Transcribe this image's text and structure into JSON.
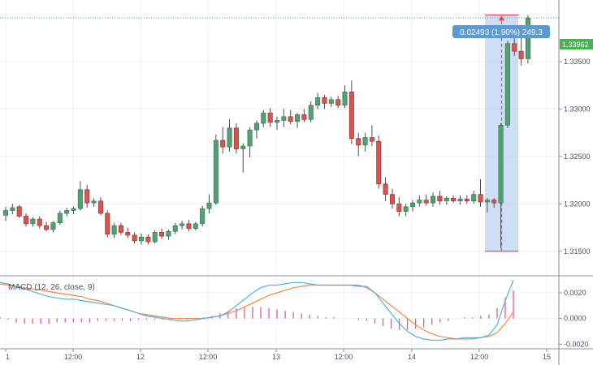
{
  "chart_data": [
    {
      "type": "candlestick",
      "x_ticks": [
        "1",
        "12:00",
        "12",
        "12:00",
        "13",
        "12:00",
        "14",
        "12:00",
        "15"
      ],
      "y_ticks": [
        "1.31500",
        "1.32000",
        "1.32500",
        "1.33000",
        "1.33500"
      ],
      "ylim": [
        1.3125,
        1.3415
      ],
      "grid": true,
      "current_price": "1.33962",
      "measure_label": "0.02493 (1.90%) 249.3",
      "measure_range": [
        1.315,
        1.33993
      ],
      "candles": [
        [
          1.3188,
          1.3197,
          1.3182,
          1.3193
        ],
        [
          1.3193,
          1.32,
          1.3189,
          1.3196
        ],
        [
          1.3197,
          1.3199,
          1.3185,
          1.3187
        ],
        [
          1.3187,
          1.319,
          1.3176,
          1.3179
        ],
        [
          1.3179,
          1.3186,
          1.3176,
          1.3184
        ],
        [
          1.3184,
          1.3187,
          1.3174,
          1.3177
        ],
        [
          1.3177,
          1.3181,
          1.3171,
          1.3173
        ],
        [
          1.3173,
          1.3182,
          1.317,
          1.318
        ],
        [
          1.318,
          1.3193,
          1.3178,
          1.319
        ],
        [
          1.319,
          1.3196,
          1.3187,
          1.3193
        ],
        [
          1.3193,
          1.3197,
          1.3189,
          1.3195
        ],
        [
          1.3195,
          1.3224,
          1.3193,
          1.3215
        ],
        [
          1.3215,
          1.322,
          1.3196,
          1.3201
        ],
        [
          1.3201,
          1.3206,
          1.3197,
          1.3203
        ],
        [
          1.3203,
          1.3207,
          1.3188,
          1.319
        ],
        [
          1.319,
          1.3193,
          1.3165,
          1.3168
        ],
        [
          1.3168,
          1.318,
          1.3164,
          1.3177
        ],
        [
          1.3177,
          1.318,
          1.3167,
          1.317
        ],
        [
          1.317,
          1.3175,
          1.3164,
          1.3167
        ],
        [
          1.3167,
          1.317,
          1.3158,
          1.3161
        ],
        [
          1.3161,
          1.3169,
          1.3157,
          1.3165
        ],
        [
          1.3165,
          1.3168,
          1.3157,
          1.316
        ],
        [
          1.316,
          1.3172,
          1.3158,
          1.317
        ],
        [
          1.317,
          1.3174,
          1.3163,
          1.3166
        ],
        [
          1.3166,
          1.3173,
          1.3162,
          1.3171
        ],
        [
          1.3171,
          1.318,
          1.3168,
          1.3177
        ],
        [
          1.3177,
          1.3182,
          1.3173,
          1.3179
        ],
        [
          1.3179,
          1.3183,
          1.3171,
          1.3174
        ],
        [
          1.3174,
          1.3181,
          1.3172,
          1.3179
        ],
        [
          1.3179,
          1.3198,
          1.3176,
          1.3195
        ],
        [
          1.3195,
          1.321,
          1.319,
          1.3201
        ],
        [
          1.3201,
          1.3273,
          1.3199,
          1.3267
        ],
        [
          1.3267,
          1.3281,
          1.3253,
          1.326
        ],
        [
          1.326,
          1.3289,
          1.3255,
          1.328
        ],
        [
          1.328,
          1.3285,
          1.3253,
          1.3258
        ],
        [
          1.3258,
          1.3264,
          1.3233,
          1.3261
        ],
        [
          1.3261,
          1.3281,
          1.3249,
          1.3278
        ],
        [
          1.3278,
          1.3288,
          1.3269,
          1.3285
        ],
        [
          1.3285,
          1.3299,
          1.3281,
          1.3296
        ],
        [
          1.3296,
          1.3301,
          1.3281,
          1.3286
        ],
        [
          1.3286,
          1.3292,
          1.3278,
          1.3288
        ],
        [
          1.3288,
          1.33,
          1.3281,
          1.3292
        ],
        [
          1.3292,
          1.3299,
          1.3284,
          1.3287
        ],
        [
          1.3287,
          1.3296,
          1.328,
          1.3294
        ],
        [
          1.3294,
          1.33,
          1.3286,
          1.3289
        ],
        [
          1.3289,
          1.3308,
          1.3286,
          1.3304
        ],
        [
          1.3304,
          1.3317,
          1.33,
          1.3312
        ],
        [
          1.3312,
          1.3315,
          1.33,
          1.3306
        ],
        [
          1.3306,
          1.3313,
          1.3302,
          1.331
        ],
        [
          1.331,
          1.3314,
          1.3301,
          1.3304
        ],
        [
          1.3304,
          1.3325,
          1.3301,
          1.3318
        ],
        [
          1.3318,
          1.333,
          1.3263,
          1.3269
        ],
        [
          1.3269,
          1.3275,
          1.325,
          1.3262
        ],
        [
          1.3262,
          1.3275,
          1.3255,
          1.327
        ],
        [
          1.327,
          1.3283,
          1.3261,
          1.3266
        ],
        [
          1.3266,
          1.3272,
          1.3216,
          1.3221
        ],
        [
          1.3221,
          1.3228,
          1.3203,
          1.321
        ],
        [
          1.321,
          1.3216,
          1.3195,
          1.32
        ],
        [
          1.32,
          1.3207,
          1.3187,
          1.3192
        ],
        [
          1.3192,
          1.32,
          1.3187,
          1.3197
        ],
        [
          1.3197,
          1.3204,
          1.3192,
          1.3201
        ],
        [
          1.3201,
          1.3209,
          1.3197,
          1.3204
        ],
        [
          1.3204,
          1.321,
          1.3198,
          1.3201
        ],
        [
          1.3201,
          1.3212,
          1.3197,
          1.3208
        ],
        [
          1.3208,
          1.3214,
          1.3199,
          1.3203
        ],
        [
          1.3203,
          1.3208,
          1.3199,
          1.3206
        ],
        [
          1.3206,
          1.3209,
          1.3201,
          1.3203
        ],
        [
          1.3203,
          1.3209,
          1.3199,
          1.3205
        ],
        [
          1.3205,
          1.3209,
          1.32,
          1.3203
        ],
        [
          1.3203,
          1.3214,
          1.32,
          1.321
        ],
        [
          1.321,
          1.3226,
          1.3197,
          1.3202
        ],
        [
          1.3202,
          1.3206,
          1.3191,
          1.3204
        ],
        [
          1.3204,
          1.3206,
          1.3196,
          1.3201
        ],
        [
          1.3201,
          1.3285,
          1.3153,
          1.3283
        ],
        [
          1.3283,
          1.3372,
          1.328,
          1.3369
        ],
        [
          1.3369,
          1.3379,
          1.3356,
          1.3361
        ],
        [
          1.3361,
          1.3381,
          1.3346,
          1.3353
        ],
        [
          1.3353,
          1.3399,
          1.3348,
          1.3396
        ]
      ]
    },
    {
      "type": "line",
      "title": "MACD (12, 26, close, 9)",
      "y_ticks": [
        "0.0020",
        "0.0000",
        "-0.0020"
      ],
      "ylim": [
        -0.0023,
        0.0032
      ],
      "series": [
        {
          "values": [
            0.0028,
            0.0027,
            0.0025,
            0.0023,
            0.0021,
            0.0019,
            0.0017,
            0.0016,
            0.0015,
            0.0015,
            0.0014,
            0.0013,
            0.0012,
            0.0011,
            0.001,
            0.0008,
            0.0006,
            0.0004,
            0.0002,
            0.0001,
            0.0,
            -0.0001,
            -0.0002,
            -0.0002,
            -0.0001,
            0.0,
            0.0001,
            0.0002,
            0.0005,
            0.001,
            0.0015,
            0.002,
            0.0024,
            0.0026,
            0.0026,
            0.0027,
            0.0028,
            0.0028,
            0.0027,
            0.0026,
            0.0026,
            0.0026,
            0.0026,
            0.0026,
            0.0025,
            0.0025,
            0.002,
            0.0012,
            0.0004,
            -0.0004,
            -0.001,
            -0.0014,
            -0.0016,
            -0.0017,
            -0.0017,
            -0.0016,
            -0.0016,
            -0.0015,
            -0.0015,
            -0.0015,
            -0.0013,
            -0.0005,
            0.0014,
            0.003
          ]
        },
        {
          "values": [
            0.0027,
            0.0026,
            0.0025,
            0.0024,
            0.0023,
            0.0022,
            0.0021,
            0.002,
            0.0019,
            0.0018,
            0.0017,
            0.0015,
            0.0014,
            0.0012,
            0.001,
            0.0008,
            0.0006,
            0.0004,
            0.0003,
            0.0002,
            0.0001,
            0.0,
            0.0,
            0.0,
            0.0,
            0.0,
            0.0001,
            0.0002,
            0.0004,
            0.0006,
            0.0009,
            0.0012,
            0.0015,
            0.0018,
            0.002,
            0.0022,
            0.0024,
            0.0025,
            0.0026,
            0.0026,
            0.0026,
            0.0026,
            0.0026,
            0.0026,
            0.0026,
            0.0024,
            0.002,
            0.0015,
            0.001,
            0.0005,
            0.0,
            -0.0005,
            -0.0009,
            -0.0012,
            -0.0014,
            -0.0015,
            -0.0016,
            -0.0016,
            -0.0016,
            -0.0015,
            -0.0014,
            -0.0011,
            -0.0004,
            0.0005
          ]
        }
      ],
      "histogram": [
        0.0001,
        -0.0001,
        -0.0003,
        -0.0004,
        -0.0004,
        -0.0004,
        -0.0004,
        -0.0003,
        -0.0003,
        -0.0003,
        -0.0003,
        -0.0003,
        -0.0002,
        -0.0002,
        -0.0002,
        -0.0002,
        -0.0002,
        -0.0001,
        -0.0001,
        -0.0001,
        -0.0001,
        -0.0001,
        -0.0001,
        -0.0001,
        0.0,
        0.0001,
        0.0002,
        0.0004,
        0.0006,
        0.0008,
        0.0009,
        0.0009,
        0.0009,
        0.0008,
        0.0007,
        0.0006,
        0.0005,
        0.0004,
        0.0003,
        0.0002,
        0.0001,
        0.0001,
        0.0,
        0.0,
        -0.0001,
        -0.0002,
        -0.0004,
        -0.0006,
        -0.0008,
        -0.0009,
        -0.0009,
        -0.0008,
        -0.0007,
        -0.0005,
        -0.0003,
        -0.0002,
        0.0,
        0.0001,
        0.0001,
        0.0002,
        0.0003,
        0.0008,
        0.0016,
        0.0022
      ]
    }
  ]
}
